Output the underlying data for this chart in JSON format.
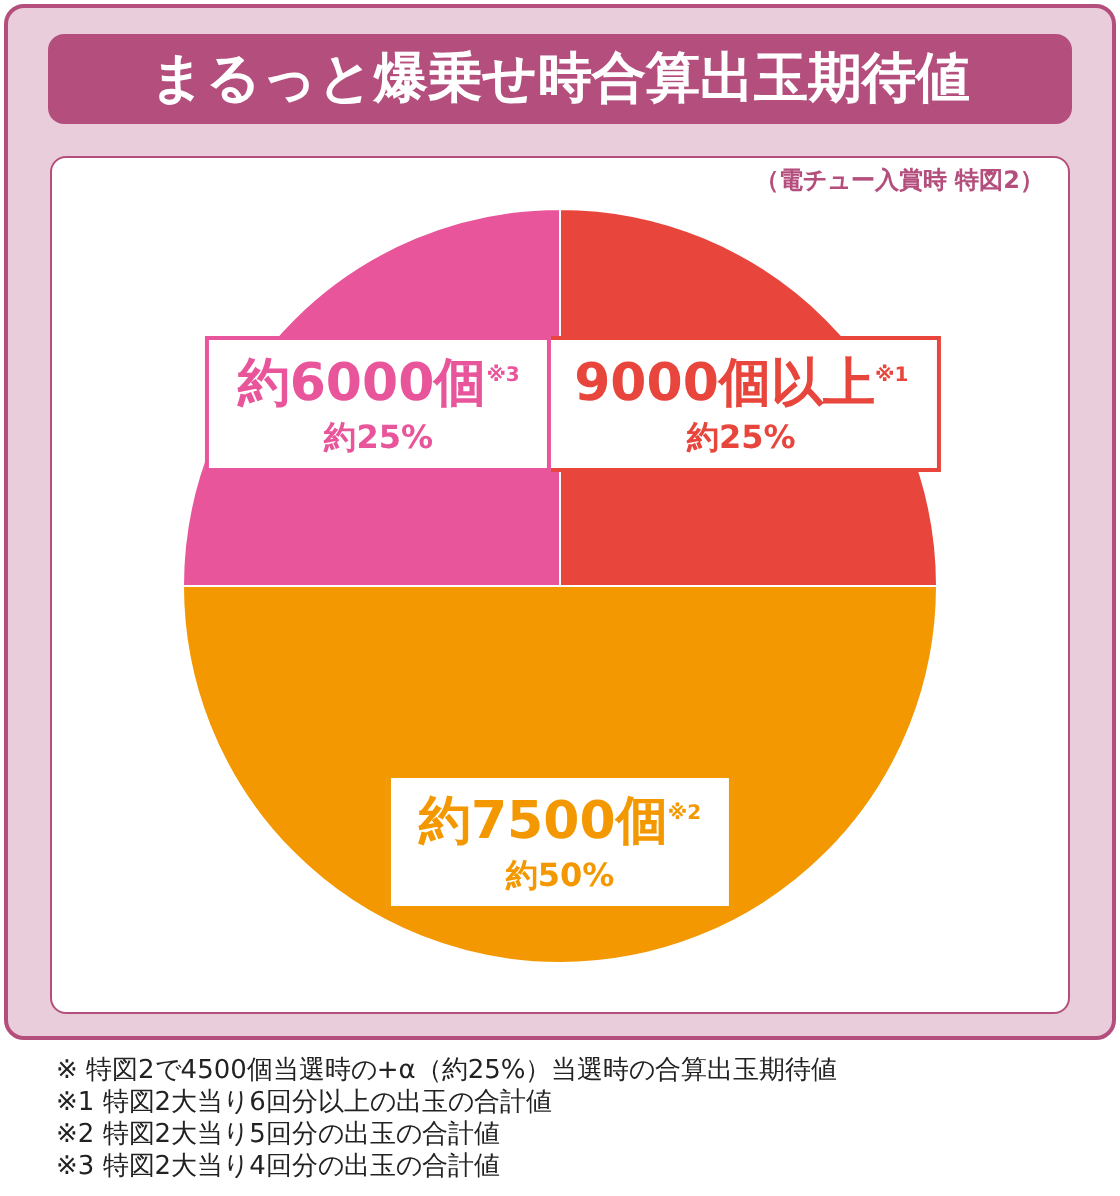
{
  "chart_data": {
    "type": "pie",
    "title": "まるっと爆乗せ時合算出玉期待値",
    "subtitle": "（電チュー入賞時 特図2）",
    "categories": [
      "9000個以上$^{※1}$",
      "約7500個$^{※2}$",
      "約6000個$^{※3}$"
    ],
    "values": [
      25,
      50,
      25
    ],
    "value_labels": [
      "約25%",
      "約50%",
      "約25%"
    ],
    "colors": [
      "#e8453c",
      "#f39800",
      "#e8559a"
    ],
    "legend": false,
    "annotations": [
      "※ 特図2で4500個当選時の+α（約25%）当選時の合算出玉期待値",
      "※1 特図2大当り6回分以上の出玉の合計値",
      "※2 特図2大当り5回分の出玉の合計値",
      "※3 特図2大当り4回分の出玉の合計値"
    ]
  }
}
